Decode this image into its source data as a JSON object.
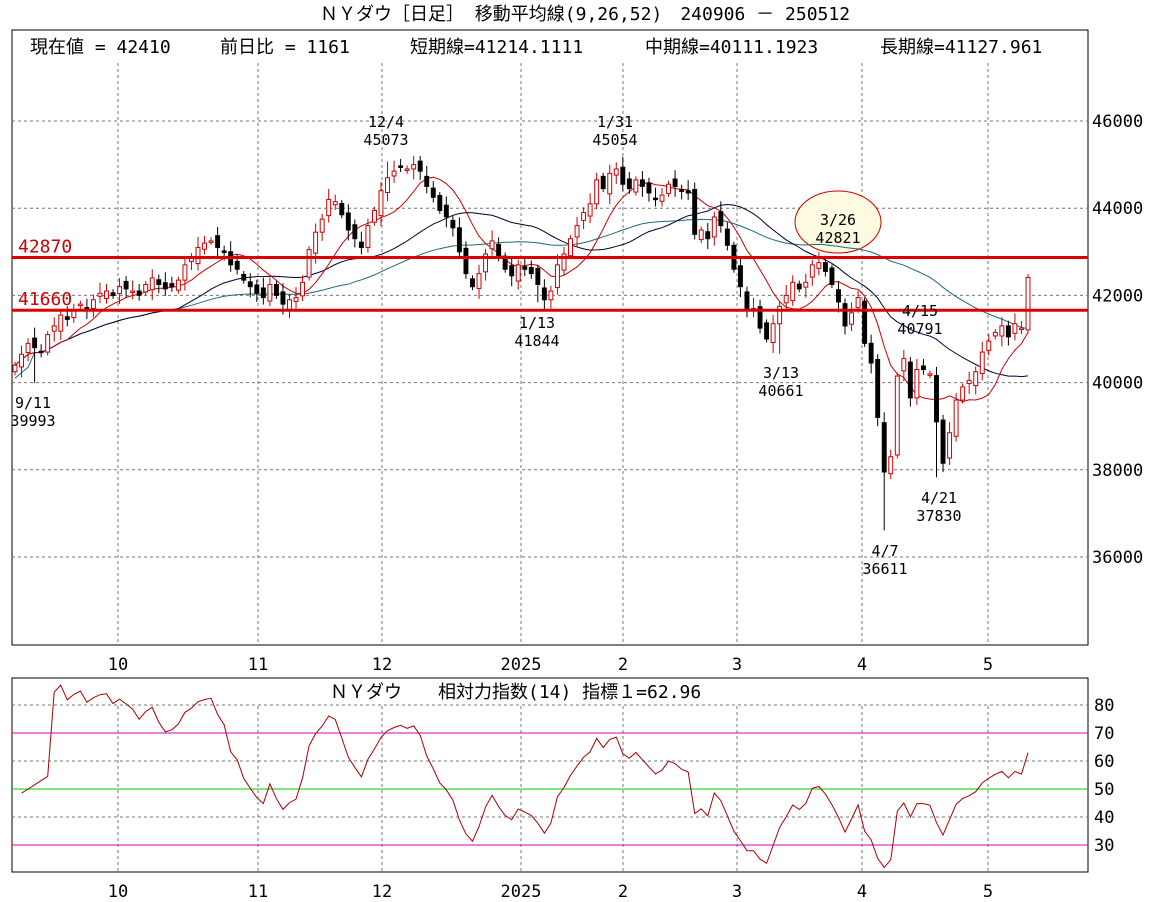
{
  "header": {
    "title": "ＮＹダウ［日足］ 移動平均線(9,26,52)　240906 － 250512",
    "stats": [
      "現在値 = 42410",
      "前日比 = 1161",
      "短期線=41214.1111",
      "中期線=40111.1923",
      "長期線=41127.961"
    ]
  },
  "rsi_header": {
    "title": "ＮＹダウ　　相対力指数(14) 指標１=62.96"
  },
  "colors": {
    "up": "#cc0000",
    "down": "#000000",
    "ma_short": "#cc0000",
    "ma_mid": "#000033",
    "ma_long": "#1a6b7a",
    "level": "#dd0000",
    "rsi": "#aa0000",
    "rsi_band": "#cc00cc",
    "rsi_mid": "#00cc00",
    "ellipse_fill": "#fffbe0",
    "ellipse_stroke": "#cc0000"
  },
  "chart_data": [
    {
      "type": "candlestick",
      "ylim": [
        34000,
        48000
      ],
      "y_ticks": [
        36000,
        38000,
        40000,
        42000,
        44000,
        46000
      ],
      "x_tick_labels": [
        "10",
        "11",
        "12",
        "2025",
        "2",
        "3",
        "4",
        "5"
      ],
      "grid": true,
      "horizontal_levels": [
        {
          "label": "42870",
          "value": 42870
        },
        {
          "label": "41660",
          "value": 41660
        }
      ],
      "annotations": [
        {
          "date": "9/11",
          "value": "39993"
        },
        {
          "date": "12/4",
          "value": "45073"
        },
        {
          "date": "1/13",
          "value": "41844"
        },
        {
          "date": "1/31",
          "value": "45054"
        },
        {
          "date": "3/13",
          "value": "40661"
        },
        {
          "date": "3/26",
          "value": "42821"
        },
        {
          "date": "4/7",
          "value": "36611"
        },
        {
          "date": "4/15",
          "value": "40791"
        },
        {
          "date": "4/21",
          "value": "37830"
        }
      ],
      "series_hint": "price daily candles with 9/26/52-day moving averages",
      "close_path": [
        40400,
        40650,
        40900,
        40800,
        40700,
        41100,
        41300,
        41550,
        41450,
        41650,
        41800,
        41700,
        41900,
        42050,
        42100,
        42000,
        42200,
        42150,
        42100,
        42000,
        42250,
        42400,
        42250,
        42150,
        42200,
        42350,
        42700,
        42850,
        43100,
        43200,
        43250,
        43100,
        43000,
        42700,
        42600,
        42350,
        42200,
        42050,
        41950,
        42250,
        42000,
        41800,
        41900,
        41950,
        42300,
        43050,
        43450,
        43750,
        44200,
        44150,
        43850,
        43500,
        43300,
        43100,
        43600,
        43950,
        44400,
        44700,
        44850,
        44950,
        44900,
        45000,
        44850,
        44500,
        44250,
        43950,
        43800,
        43550,
        43000,
        42500,
        42200,
        42500,
        42950,
        43250,
        42900,
        42600,
        42450,
        42700,
        42600,
        42500,
        42250,
        41900,
        42100,
        42700,
        42950,
        43300,
        43600,
        43900,
        44100,
        44650,
        44450,
        44800,
        44900,
        44550,
        44450,
        44650,
        44500,
        44350,
        44200,
        44300,
        44550,
        44500,
        44400,
        44350,
        43400,
        43500,
        43300,
        43800,
        43600,
        43150,
        42600,
        42200,
        41700,
        41700,
        41250,
        41000,
        41350,
        41750,
        42000,
        42300,
        42150,
        42300,
        42700,
        42750,
        42550,
        42250,
        41850,
        41300,
        41600,
        41950,
        40900,
        40450,
        39200,
        37950,
        38300,
        40150,
        40550,
        39650,
        40300,
        40300,
        40200,
        39100,
        38150,
        38850,
        39600,
        39900,
        40050,
        40250,
        40700,
        40950,
        41150,
        41300,
        41050,
        41350,
        41250,
        42410
      ]
    },
    {
      "type": "line",
      "title": "ＮＹダウ　　相対力指数(14) 指標１=62.96",
      "ylim": [
        20,
        90
      ],
      "y_ticks": [
        30,
        40,
        50,
        60,
        70,
        80
      ],
      "x_tick_labels": [
        "10",
        "11",
        "12",
        "2025",
        "2",
        "3",
        "4",
        "5"
      ],
      "reference_lines": [
        30,
        50,
        70
      ],
      "last_value": 62.96
    }
  ]
}
